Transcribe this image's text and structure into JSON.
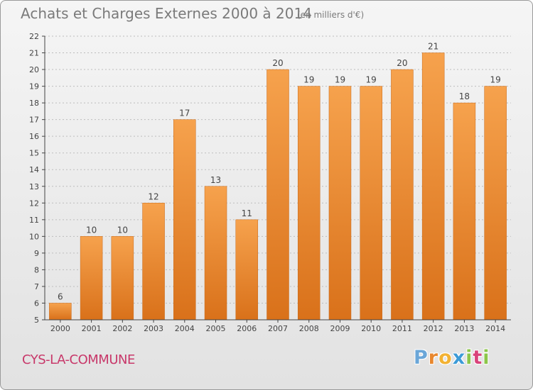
{
  "header": {
    "title": "Achats et Charges Externes 2000 à 2014",
    "subtitle": "(en milliers d'€)"
  },
  "footer": {
    "commune": "CYS-LA-COMMUNE",
    "logo_letters": [
      "P",
      "r",
      "o",
      "x",
      "i",
      "t",
      "i"
    ]
  },
  "colors": {
    "bar_top": "#f6a24d",
    "bar_bottom": "#d9711a",
    "axis": "#444444",
    "grid": "#bdbdbd",
    "commune_text": "#c8386a"
  },
  "chart_data": {
    "type": "bar",
    "title": "Achats et Charges Externes 2000 à 2014",
    "subtitle": "(en milliers d'€)",
    "xlabel": "",
    "ylabel": "",
    "categories": [
      "2000",
      "2001",
      "2002",
      "2003",
      "2004",
      "2005",
      "2006",
      "2007",
      "2008",
      "2009",
      "2010",
      "2011",
      "2012",
      "2013",
      "2014"
    ],
    "values": [
      6,
      10,
      10,
      12,
      17,
      13,
      11,
      20,
      19,
      19,
      19,
      20,
      21,
      18,
      19
    ],
    "ylim": [
      5,
      22
    ],
    "yticks": [
      5,
      6,
      7,
      8,
      9,
      10,
      11,
      12,
      13,
      14,
      15,
      16,
      17,
      18,
      19,
      20,
      21,
      22
    ],
    "grid": true,
    "data_labels": true
  }
}
